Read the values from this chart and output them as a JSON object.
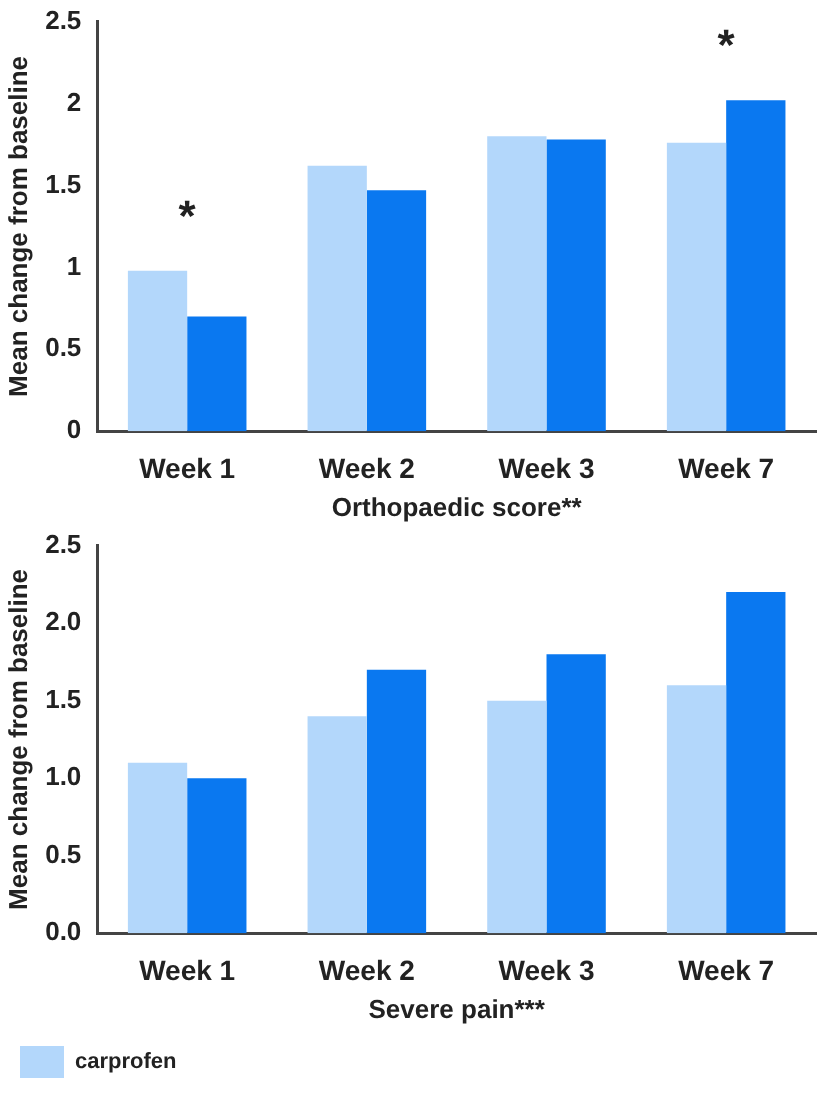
{
  "chart_data": [
    {
      "type": "bar",
      "xlabel": "Orthopaedic score**",
      "ylabel": "Mean change from baseline",
      "categories": [
        "Week 1",
        "Week 2",
        "Week 3",
        "Week 7"
      ],
      "series": [
        {
          "color": "#b3d7fb",
          "values": [
            0.98,
            1.62,
            1.8,
            1.76
          ]
        },
        {
          "color": "#0a78f0",
          "values": [
            0.7,
            1.47,
            1.78,
            2.02
          ]
        }
      ],
      "ylim": [
        0,
        2.5
      ],
      "yticks": [
        0,
        0.5,
        1,
        1.5,
        2,
        2.5
      ],
      "grid": false,
      "legend": false,
      "annotations": [
        {
          "text": "*",
          "x": "Week 1",
          "y": 0.98
        },
        {
          "text": "*",
          "x": "Week 7",
          "y": 2.02
        }
      ]
    },
    {
      "type": "bar",
      "xlabel": "Severe pain***",
      "ylabel": "Mean change from baseline",
      "categories": [
        "Week 1",
        "Week 2",
        "Week 3",
        "Week 7"
      ],
      "series": [
        {
          "name": "carprofen",
          "color": "#b3d7fb",
          "values": [
            1.1,
            1.4,
            1.5,
            1.6
          ]
        },
        {
          "color": "#0a78f0",
          "values": [
            1.0,
            1.7,
            1.8,
            2.2
          ]
        }
      ],
      "ylim": [
        0,
        2.5
      ],
      "yticks": [
        {
          "value": 0,
          "label": "0.0"
        },
        {
          "value": 0.5,
          "label": "0.5"
        },
        {
          "value": 1,
          "label": "1.0"
        },
        {
          "value": 1.5,
          "label": "1.5"
        },
        {
          "value": 2,
          "label": "2.0"
        },
        {
          "value": 2.5,
          "label": "2.5"
        }
      ],
      "grid": false,
      "legend": "bottom"
    }
  ]
}
